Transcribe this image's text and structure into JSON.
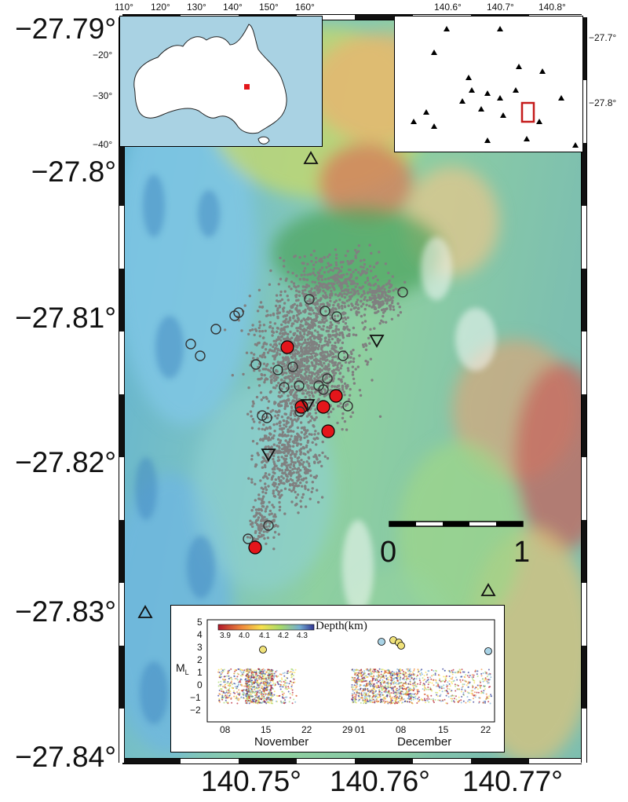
{
  "main_map": {
    "lat_labels": [
      "−27.79°",
      "−27.8°",
      "−27.81°",
      "−27.82°",
      "−27.83°",
      "−27.84°"
    ],
    "lon_labels": [
      "140.75°",
      "140.76°",
      "140.77°"
    ],
    "scale_bar": {
      "left_label": "0",
      "right_label": "1"
    },
    "colors": {
      "earthquake": "#808080",
      "large_event": "#e3161b",
      "station_fill": "none",
      "station_stroke": "#000000"
    }
  },
  "inset_australia": {
    "lon_labels": [
      "110°",
      "120°",
      "130°",
      "140°",
      "150°",
      "160°"
    ],
    "lat_labels": [
      "−20°",
      "−30°",
      "−40°"
    ],
    "colors": {
      "ocean": "#a9d2e3",
      "land": "#ffffff",
      "marker": "#e3161b"
    }
  },
  "inset_stations": {
    "lon_labels": [
      "140.6°",
      "140.7°",
      "140.8°"
    ],
    "lat_labels": [
      "−27.7°",
      "−27.8°"
    ],
    "colors": {
      "station": "#000000",
      "box": "#c51b1b"
    }
  },
  "timeseries": {
    "ylabel_main": "M",
    "ylabel_sub": "L",
    "y_ticks": [
      "5",
      "4",
      "3",
      "2",
      "1",
      "0",
      "−1",
      "−2"
    ],
    "x_ticks": [
      "08",
      "15",
      "22",
      "29",
      "01",
      "08",
      "15",
      "22"
    ],
    "months": [
      "November",
      "December"
    ],
    "colorbar": {
      "title": "Depth(km)",
      "ticks": [
        "3.9",
        "4.0",
        "4.1",
        "4.2",
        "4.3"
      ]
    }
  }
}
